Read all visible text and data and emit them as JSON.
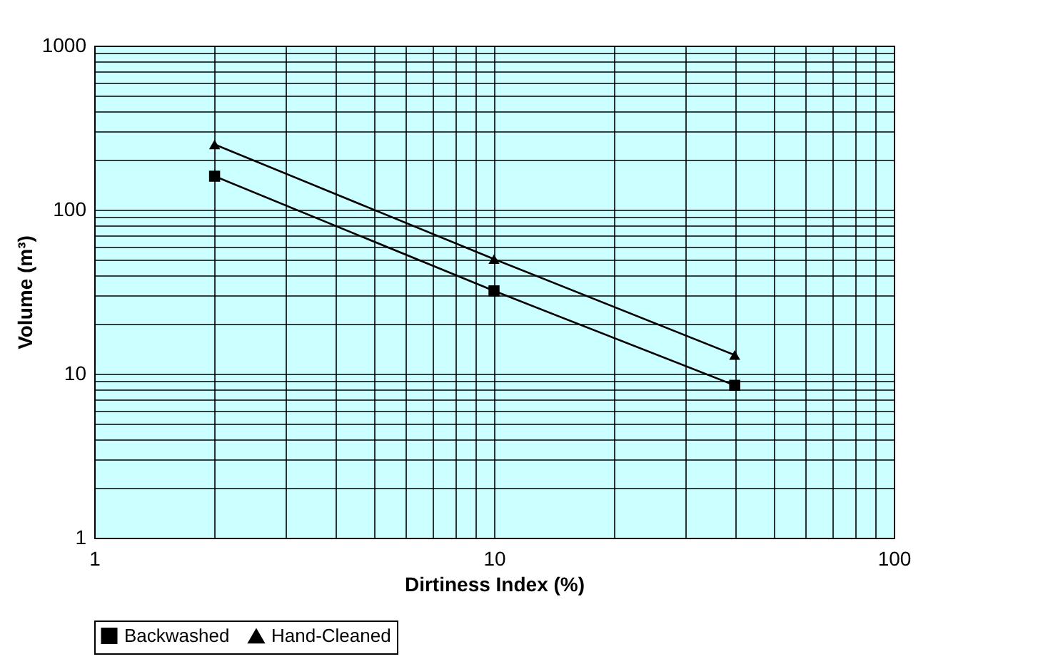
{
  "chart_data": {
    "type": "line",
    "xlabel": "Dirtiness Index (%)",
    "ylabel": "Volume (m³)",
    "x": [
      2,
      10,
      40
    ],
    "series": [
      {
        "name": "Backwashed",
        "color": "#000000",
        "marker": "square",
        "values": [
          160,
          32,
          8.5
        ]
      },
      {
        "name": "Hand-Cleaned",
        "color": "#000000",
        "marker": "triangle",
        "values": [
          250,
          50,
          13
        ]
      }
    ],
    "log": "xy",
    "xlim": [
      1,
      100
    ],
    "ylim": [
      1,
      1000
    ],
    "xticks": [
      1,
      10,
      100
    ],
    "yticks": [
      1,
      10,
      100,
      {
        "value": 1000,
        "label": "1000"
      }
    ],
    "grid": true,
    "legend": "bottom",
    "line_style": "solid"
  }
}
